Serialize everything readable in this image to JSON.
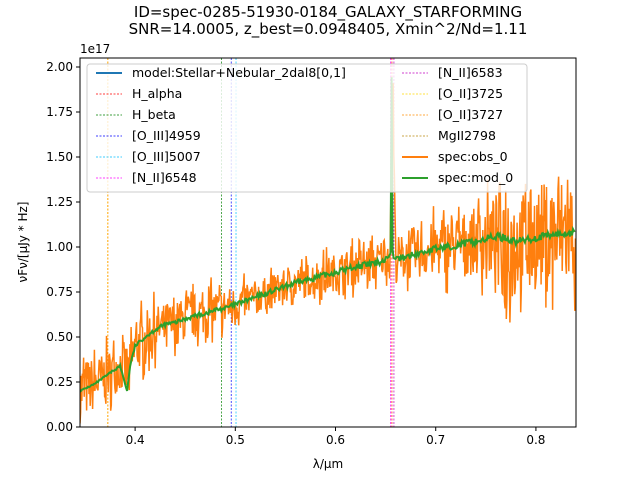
{
  "chart_data": {
    "type": "line",
    "title_lines": [
      "ID=spec-0285-51930-0184_GALAXY_STARFORMING",
      "SNR=14.0005, z_best=0.0948405, Xmin^2/Nd=1.11"
    ],
    "xlabel": "λ/µm",
    "ylabel": "νFν/[µJy * Hz]",
    "y_offset_label": "1e17",
    "xlim": [
      0.345,
      0.84
    ],
    "ylim": [
      0.0,
      2.05
    ],
    "xticks": [
      0.4,
      0.5,
      0.6,
      0.7,
      0.8
    ],
    "xtick_labels": [
      "0.4",
      "0.5",
      "0.6",
      "0.7",
      "0.8"
    ],
    "yticks": [
      0.0,
      0.25,
      0.5,
      0.75,
      1.0,
      1.25,
      1.5,
      1.75,
      2.0
    ],
    "ytick_labels": [
      "0.00",
      "0.25",
      "0.50",
      "0.75",
      "1.00",
      "1.25",
      "1.50",
      "1.75",
      "2.00"
    ],
    "grid": false,
    "legend_position": "top",
    "legend": [
      {
        "label": "model:Stellar+Nebular_2dal8[0,1]",
        "color": "#1f77b4",
        "style": "solid"
      },
      {
        "label": "H_alpha",
        "color": "#ff0000",
        "style": "dotted"
      },
      {
        "label": "H_beta",
        "color": "#008000",
        "style": "dotted"
      },
      {
        "label": "[O_III]4959",
        "color": "#0000ff",
        "style": "dotted"
      },
      {
        "label": "[O_III]5007",
        "color": "#00bfff",
        "style": "dotted"
      },
      {
        "label": "[N_II]6548",
        "color": "#ff00ff",
        "style": "dotted"
      },
      {
        "label": "[N_II]6583",
        "color": "#c000c0",
        "style": "dotted"
      },
      {
        "label": "[O_II]3725",
        "color": "#ffd700",
        "style": "dotted"
      },
      {
        "label": "[O_II]3727",
        "color": "#ff8c00",
        "style": "dotted"
      },
      {
        "label": "MgII2798",
        "color": "#b8860b",
        "style": "dotted"
      },
      {
        "label": "spec:obs_0",
        "color": "#ff7f0e",
        "style": "solid"
      },
      {
        "label": "spec:mod_0",
        "color": "#2ca02c",
        "style": "solid"
      }
    ],
    "emission_lines": [
      {
        "name": "H_alpha",
        "x": 0.6563,
        "color": "#ff0000"
      },
      {
        "name": "H_beta",
        "x": 0.4861,
        "color": "#008000"
      },
      {
        "name": "[O_III]4959",
        "x": 0.4959,
        "color": "#0000ff"
      },
      {
        "name": "[O_III]5007",
        "x": 0.5007,
        "color": "#00bfff"
      },
      {
        "name": "[N_II]6548",
        "x": 0.6548,
        "color": "#ff00ff"
      },
      {
        "name": "[N_II]6583",
        "x": 0.6583,
        "color": "#c000c0"
      },
      {
        "name": "[O_II]3725",
        "x": 0.3726,
        "color": "#ffd700"
      },
      {
        "name": "[O_II]3727",
        "x": 0.3729,
        "color": "#ff8c00"
      }
    ],
    "series": [
      {
        "name": "spec:mod_0",
        "color": "#2ca02c",
        "x": [
          0.345,
          0.36,
          0.375,
          0.385,
          0.392,
          0.395,
          0.4,
          0.41,
          0.42,
          0.43,
          0.44,
          0.45,
          0.46,
          0.47,
          0.48,
          0.49,
          0.5,
          0.52,
          0.54,
          0.56,
          0.58,
          0.6,
          0.62,
          0.64,
          0.65,
          0.655,
          0.656,
          0.657,
          0.66,
          0.68,
          0.7,
          0.72,
          0.74,
          0.76,
          0.77,
          0.78,
          0.8,
          0.82,
          0.84
        ],
        "y": [
          0.2,
          0.24,
          0.3,
          0.34,
          0.2,
          0.34,
          0.45,
          0.5,
          0.54,
          0.57,
          0.58,
          0.6,
          0.62,
          0.63,
          0.65,
          0.66,
          0.68,
          0.72,
          0.76,
          0.8,
          0.83,
          0.86,
          0.89,
          0.91,
          0.93,
          0.98,
          1.98,
          0.97,
          0.93,
          0.96,
          0.99,
          1.01,
          1.03,
          1.06,
          1.05,
          1.03,
          1.05,
          1.07,
          1.08
        ]
      }
    ],
    "obs_series": {
      "name": "spec:obs_0",
      "color": "#ff7f0e",
      "x": [
        0.345,
        0.36,
        0.375,
        0.385,
        0.395,
        0.4,
        0.42,
        0.44,
        0.46,
        0.48,
        0.5,
        0.52,
        0.54,
        0.56,
        0.58,
        0.6,
        0.62,
        0.64,
        0.655,
        0.657,
        0.66,
        0.68,
        0.7,
        0.72,
        0.74,
        0.76,
        0.77,
        0.78,
        0.8,
        0.82,
        0.84
      ],
      "y": [
        0.2,
        0.24,
        0.3,
        0.34,
        0.3,
        0.45,
        0.54,
        0.58,
        0.62,
        0.65,
        0.68,
        0.72,
        0.76,
        0.8,
        0.83,
        0.86,
        0.89,
        0.91,
        0.98,
        1.98,
        0.93,
        0.96,
        0.99,
        1.01,
        1.03,
        1.06,
        1.05,
        1.03,
        1.05,
        1.07,
        1.08
      ],
      "noise_fraction": [
        0.9,
        0.6,
        0.45,
        0.4,
        0.55,
        0.35,
        0.25,
        0.2,
        0.2,
        0.18,
        0.15,
        0.13,
        0.12,
        0.12,
        0.12,
        0.12,
        0.12,
        0.12,
        0.12,
        0.12,
        0.14,
        0.14,
        0.16,
        0.17,
        0.18,
        0.22,
        0.4,
        0.25,
        0.28,
        0.3,
        0.3
      ]
    }
  }
}
